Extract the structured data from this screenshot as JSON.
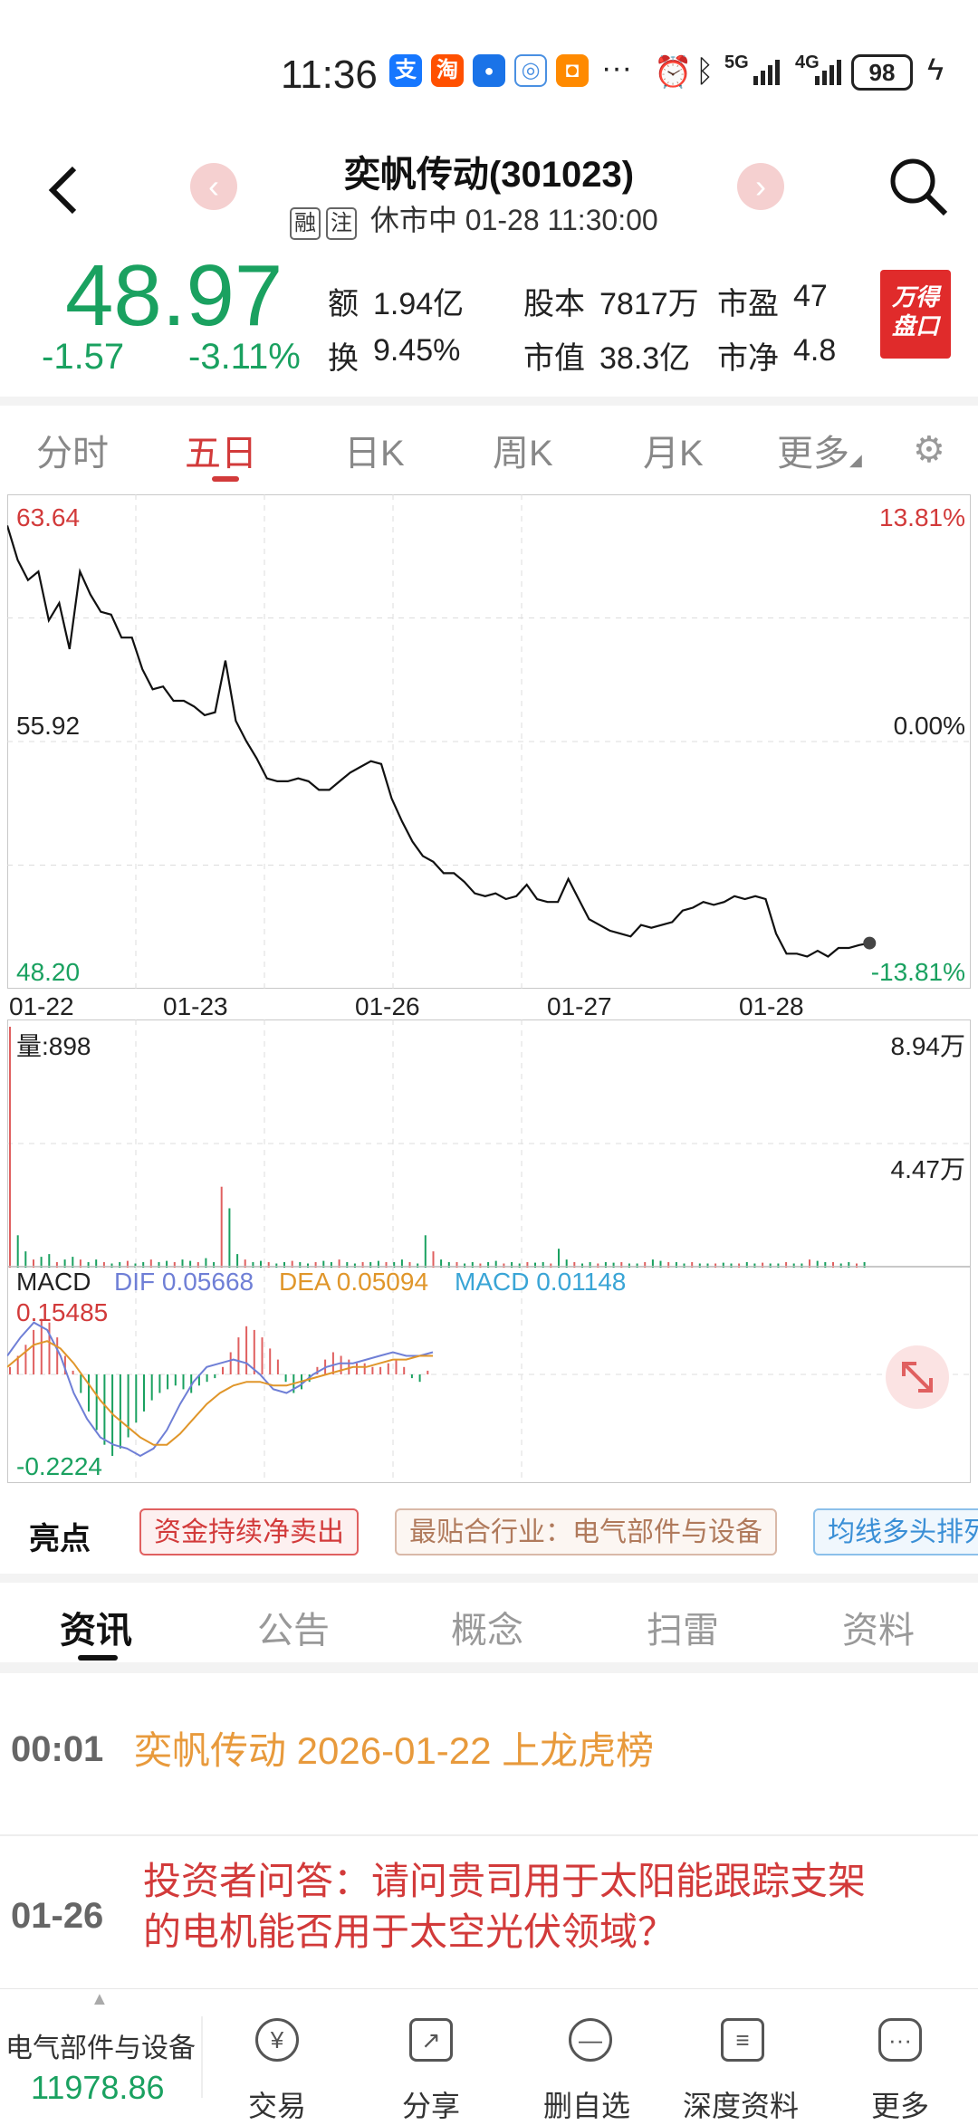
{
  "status_bar": {
    "time": "11:36",
    "apps": [
      {
        "icon": "alipay-icon",
        "glyph": "支",
        "color": "#1677ff"
      },
      {
        "icon": "taobao-icon",
        "glyph": "淘",
        "color": "#ff5000"
      },
      {
        "icon": "bulb-app-icon",
        "glyph": "💡",
        "color": "#1a73e8"
      },
      {
        "icon": "swirl-app-icon",
        "glyph": "◎",
        "color": "#4a90e2"
      },
      {
        "icon": "orange-app-icon",
        "glyph": "◘",
        "color": "#ff8a00"
      }
    ],
    "more": "···",
    "network_5g": "5G",
    "network_4g": "4G",
    "battery": "98"
  },
  "header": {
    "title": "奕帆传动(301023)",
    "tag1": "融",
    "tag2": "注",
    "status_text": "休市中 01-28 11:30:00"
  },
  "quote": {
    "price": "48.97",
    "change": "-1.57",
    "change_pct": "-3.11%",
    "amount_label": "额",
    "amount": "1.94亿",
    "turnover_label": "换",
    "turnover": "9.45%",
    "shares_label": "股本",
    "shares": "7817万",
    "mktcap_label": "市值",
    "mktcap": "38.3亿",
    "pe_label": "市盈",
    "pe": "47",
    "pb_label": "市净",
    "pb": "4.8",
    "wande_line1": "万得",
    "wande_line2": "盘口"
  },
  "period_tabs": [
    "分时",
    "五日",
    "日K",
    "周K",
    "月K",
    "更多"
  ],
  "chart_data": {
    "type": "line",
    "title": "",
    "price_axis": {
      "max": "63.64",
      "mid": "55.92",
      "min": "48.20"
    },
    "pct_axis": {
      "max": "13.81%",
      "mid": "0.00%",
      "min": "-13.81%"
    },
    "ylim": [
      48.2,
      63.64
    ],
    "dates": [
      "01-22",
      "01-23",
      "01-26",
      "01-27",
      "01-28"
    ],
    "price_series": [
      63.5,
      62.3,
      61.6,
      61.9,
      60.2,
      60.8,
      59.2,
      61.9,
      61.1,
      60.5,
      60.4,
      59.6,
      59.6,
      58.5,
      57.8,
      57.9,
      57.4,
      57.4,
      57.2,
      56.9,
      57.0,
      58.8,
      56.7,
      56.0,
      55.4,
      54.7,
      54.6,
      54.6,
      54.7,
      54.6,
      54.3,
      54.3,
      54.6,
      54.9,
      55.1,
      55.3,
      55.2,
      54.0,
      53.2,
      52.5,
      52.0,
      51.8,
      51.4,
      51.4,
      51.1,
      50.7,
      50.6,
      50.7,
      50.5,
      50.6,
      51.0,
      50.5,
      50.4,
      50.4,
      51.2,
      50.5,
      49.8,
      49.6,
      49.4,
      49.3,
      49.2,
      49.6,
      49.5,
      49.6,
      49.7,
      50.1,
      50.2,
      50.4,
      50.3,
      50.4,
      50.6,
      50.5,
      50.6,
      50.5,
      49.3,
      48.6,
      48.6,
      48.5,
      48.7,
      48.5,
      48.8,
      48.8,
      48.9,
      48.97
    ],
    "volume": {
      "label": "量:898",
      "max": "8.94万",
      "mid": "4.47万",
      "bars": [
        89400,
        12000,
        6000,
        3000,
        4000,
        5000,
        2000,
        3000,
        4000,
        3000,
        2000,
        3000,
        2000,
        1500,
        2000,
        2500,
        1500,
        2000,
        3000,
        2000,
        2500,
        2000,
        3000,
        2500,
        2000,
        3500,
        2000,
        30000,
        22000,
        5000,
        3000,
        2000,
        2500,
        2000,
        1500,
        2000,
        2500,
        2000,
        1500,
        2000,
        2500,
        2000,
        3000,
        2000,
        1500,
        2000,
        2000,
        2500,
        2000,
        2000,
        3000,
        2000,
        1500,
        12000,
        6000,
        3000,
        2000,
        2000,
        1500,
        2000,
        1500,
        2000,
        2500,
        1500,
        2000,
        1500,
        2000,
        1800,
        2000,
        1500,
        7000,
        3000,
        2000,
        1500,
        2000,
        1500,
        2000,
        1800,
        2000,
        1500,
        1500,
        2000,
        3000,
        2500,
        2000,
        2000,
        1500,
        2000,
        1500,
        1500,
        1500,
        1800,
        1500,
        1500,
        2000,
        1500,
        1800,
        1500,
        1500,
        2000,
        1500,
        1500,
        3000,
        2500,
        2000,
        2000,
        1500,
        2000,
        1500,
        2000
      ]
    },
    "macd": {
      "label": "MACD",
      "dif_label": "DIF 0.05668",
      "dea_label": "DEA 0.05094",
      "macd_label": "MACD 0.01148",
      "max": "0.15485",
      "min": "-0.2224",
      "hist": [
        0.02,
        0.05,
        0.08,
        0.12,
        0.15,
        0.14,
        0.1,
        0.05,
        0.01,
        -0.05,
        -0.1,
        -0.15,
        -0.19,
        -0.22,
        -0.2,
        -0.17,
        -0.13,
        -0.1,
        -0.07,
        -0.05,
        -0.04,
        -0.03,
        -0.04,
        -0.05,
        -0.03,
        -0.02,
        -0.01,
        0.02,
        0.06,
        0.1,
        0.13,
        0.12,
        0.1,
        0.07,
        0.04,
        -0.02,
        -0.05,
        -0.04,
        -0.02,
        0.02,
        0.04,
        0.06,
        0.05,
        0.04,
        0.03,
        0.03,
        0.02,
        0.02,
        0.03,
        0.04,
        0.02,
        -0.01,
        -0.02,
        0.01
      ],
      "dif": [
        0.05,
        0.1,
        0.14,
        0.12,
        0.05,
        -0.05,
        -0.12,
        -0.17,
        -0.19,
        -0.2,
        -0.22,
        -0.2,
        -0.15,
        -0.08,
        -0.02,
        0.02,
        0.03,
        0.04,
        0.03,
        0.0,
        -0.04,
        -0.05,
        -0.03,
        0.0,
        0.02,
        0.03,
        0.03,
        0.04,
        0.05,
        0.06,
        0.05,
        0.05,
        0.06
      ],
      "dea": [
        0.02,
        0.05,
        0.08,
        0.09,
        0.07,
        0.03,
        -0.02,
        -0.07,
        -0.11,
        -0.14,
        -0.17,
        -0.19,
        -0.19,
        -0.16,
        -0.12,
        -0.08,
        -0.05,
        -0.03,
        -0.02,
        -0.02,
        -0.03,
        -0.03,
        -0.02,
        -0.01,
        0.0,
        0.01,
        0.02,
        0.02,
        0.03,
        0.04,
        0.04,
        0.05,
        0.05
      ]
    }
  },
  "highlights": {
    "title": "亮点",
    "chip1": "资金持续净卖出",
    "chip2": "最贴合行业：电气部件与设备",
    "chip3": "均线多头排列"
  },
  "news_tabs": [
    "资讯",
    "公告",
    "概念",
    "扫雷",
    "资料"
  ],
  "news": [
    {
      "time": "00:01",
      "text": "奕帆传动 2026-01-22 上龙虎榜"
    },
    {
      "time": "01-26",
      "line1": "投资者问答：请问贵司用于太阳能跟踪支架",
      "line2": "的电机能否用于太空光伏领域？"
    }
  ],
  "bottom_bar": {
    "sector": "电气部件与设备",
    "index_value": "11978.86",
    "items": [
      {
        "label": "交易",
        "icon": "yen-icon",
        "glyph": "¥"
      },
      {
        "label": "分享",
        "icon": "share-icon",
        "glyph": "↗"
      },
      {
        "label": "删自选",
        "icon": "remove-watchlist-icon",
        "glyph": "—"
      },
      {
        "label": "深度资料",
        "icon": "document-icon",
        "glyph": "≡"
      },
      {
        "label": "更多",
        "icon": "more-icon",
        "glyph": "···"
      }
    ]
  }
}
